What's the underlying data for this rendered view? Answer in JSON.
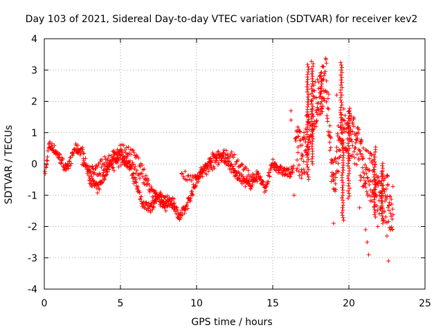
{
  "chart_data": {
    "type": "scatter",
    "title": "Day 103 of 2021, Sidereal Day-to-day VTEC variation (SDTVAR) for receiver kev2",
    "xlabel": "GPS time / hours",
    "ylabel": "SDTVAR / TECUs",
    "xlim": [
      0,
      25
    ],
    "ylim": [
      -4,
      4
    ],
    "xticks": [
      "0",
      "5",
      "10",
      "15",
      "20",
      "25"
    ],
    "yticks": [
      "-4",
      "-3",
      "-2",
      "-1",
      "0",
      "1",
      "2",
      "3",
      "4"
    ],
    "grid": true,
    "marker": "+",
    "series": [
      {
        "name": "SDTVAR",
        "color": "#ff0000",
        "trend_x": [
          0,
          0.3,
          0.6,
          1.0,
          1.5,
          2.0,
          2.5,
          3.0,
          3.5,
          4.0,
          4.5,
          5.0,
          5.5,
          6.0,
          6.5,
          7.0,
          7.5,
          8.0,
          8.5,
          8.9,
          9.3,
          9.8,
          10.2,
          10.6,
          11.0,
          11.5,
          12.0,
          12.5,
          13.0,
          13.5,
          14.0,
          14.5,
          15.0,
          15.5,
          16.0,
          16.4
        ],
        "trend_y": [
          -0.5,
          0.6,
          0.5,
          0.2,
          -0.2,
          0.5,
          0.4,
          -0.5,
          -0.8,
          -0.3,
          0.2,
          0.3,
          0.0,
          -0.6,
          -1.3,
          -1.4,
          -1.0,
          -1.2,
          -1.3,
          -1.7,
          -1.4,
          -0.8,
          -0.3,
          -0.1,
          0.2,
          0.3,
          0.1,
          -0.3,
          -0.5,
          -0.7,
          -0.3,
          -0.8,
          0.0,
          -0.2,
          -0.3,
          -0.2
        ],
        "offset_trends": [
          {
            "x": [
              2.5,
              3.5,
              4.5,
              5.5,
              6.5,
              7.5,
              8.5
            ],
            "y": [
              0.0,
              -0.3,
              -0.1,
              0.2,
              -0.5,
              -1.2,
              -1.1
            ]
          },
          {
            "x": [
              3.0,
              4.0,
              5.0,
              6.0,
              7.0,
              8.0
            ],
            "y": [
              -0.3,
              0.1,
              0.5,
              0.3,
              -0.8,
              -1.5
            ]
          },
          {
            "x": [
              9.0,
              10.0,
              11.0,
              12.0,
              13.0,
              14.0
            ],
            "y": [
              -0.3,
              -0.5,
              -0.1,
              0.4,
              -0.1,
              -0.6
            ]
          }
        ],
        "active_x": [
          16.5,
          17.0,
          17.5,
          18.0,
          18.5,
          19.0,
          19.5,
          20.0,
          20.5,
          21.0,
          21.5,
          22.0,
          22.5,
          22.9
        ],
        "active_y": [
          0.6,
          0.2,
          1.5,
          2.2,
          2.6,
          -0.6,
          1.0,
          0.9,
          0.6,
          -0.1,
          -0.5,
          -0.9,
          -1.1,
          -1.5
        ],
        "spikes": [
          {
            "x": 17.3,
            "y_from": -0.5,
            "y_to": 3.2
          },
          {
            "x": 17.6,
            "y_from": 0.0,
            "y_to": 3.3
          },
          {
            "x": 19.5,
            "y_from": 1.0,
            "y_to": 3.3
          },
          {
            "x": 18.2,
            "y_from": 1.6,
            "y_to": 2.8
          },
          {
            "x": 19.6,
            "y_from": -1.8,
            "y_to": 0.8
          },
          {
            "x": 20.0,
            "y_from": -1.1,
            "y_to": 1.8
          },
          {
            "x": 21.7,
            "y_from": -1.7,
            "y_to": 0.6
          },
          {
            "x": 22.2,
            "y_from": -1.9,
            "y_to": 0.1
          }
        ],
        "outliers": [
          {
            "x": 16.2,
            "y": 1.7
          },
          {
            "x": 16.2,
            "y": 1.4
          },
          {
            "x": 16.4,
            "y": -1.0
          },
          {
            "x": 19.2,
            "y": 2.2
          },
          {
            "x": 21.1,
            "y": -2.1
          },
          {
            "x": 21.2,
            "y": -2.5
          },
          {
            "x": 21.3,
            "y": -2.9
          },
          {
            "x": 22.5,
            "y": -2.3
          },
          {
            "x": 22.6,
            "y": -3.1
          },
          {
            "x": 20.7,
            "y": -1.4
          },
          {
            "x": 21.9,
            "y": -2.0
          },
          {
            "x": 19.0,
            "y": -1.9
          }
        ]
      }
    ]
  }
}
